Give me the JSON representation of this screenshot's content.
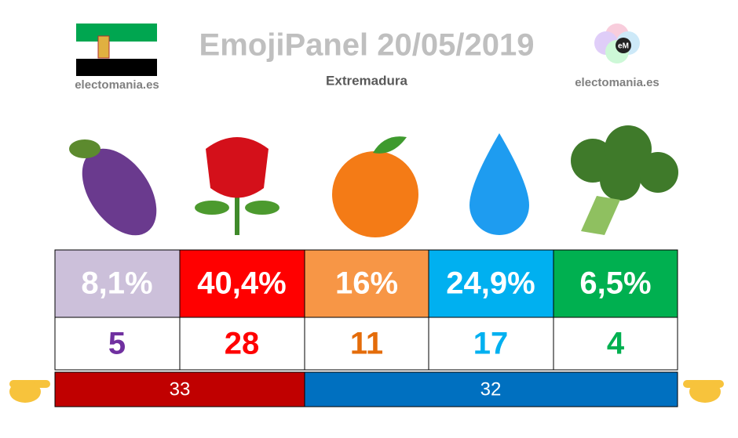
{
  "header": {
    "title": "EmojiPanel 20/05/2019",
    "region": "Extremadura",
    "source_left": "electomania.es",
    "source_right": "electomania.es",
    "logo": "eM"
  },
  "table": {
    "percentages": [
      "8,1%",
      "40,4%",
      "16%",
      "24,9%",
      "6,5%"
    ],
    "seats": [
      5,
      28,
      11,
      17,
      4
    ]
  },
  "blocs": [
    33,
    32
  ]
}
